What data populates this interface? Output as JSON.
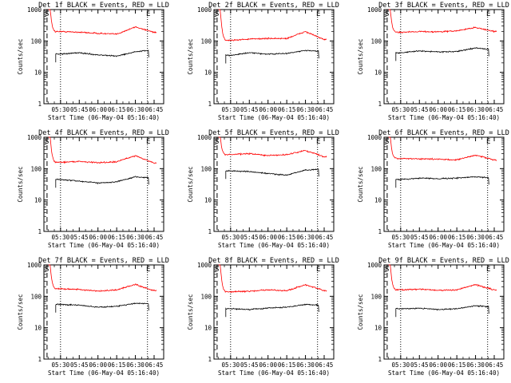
{
  "figure": {
    "start_time_label": "Start Time (06-May-04 05:16:40)",
    "ylabel": "Counts/sec",
    "x_tick_labels": [
      "05:30",
      "05:45",
      "06:00",
      "06:15",
      "06:30",
      "06:45"
    ],
    "y_tick_labels": [
      "1",
      "10",
      "100",
      "1000"
    ],
    "marker_start": "S",
    "marker_end": "E",
    "colors": {
      "events": "#000000",
      "lld": "#ff0000",
      "axes": "#000000"
    }
  },
  "chart_data": [
    {
      "type": "line",
      "title": "Det 1f BLACK = Events, RED = LLD",
      "ylim": [
        1,
        1000
      ],
      "y_scale": "log",
      "x": [
        "05:30",
        "05:45",
        "06:00",
        "06:15",
        "06:30",
        "06:45"
      ],
      "series": [
        {
          "name": "Events",
          "values": [
            38,
            42,
            36,
            33,
            45,
            52
          ]
        },
        {
          "name": "LLD",
          "values": [
            200,
            190,
            175,
            165,
            280,
            190
          ]
        }
      ]
    },
    {
      "type": "line",
      "title": "Det 2f BLACK = Events, RED = LLD",
      "ylim": [
        1,
        1000
      ],
      "y_scale": "log",
      "x": [
        "05:30",
        "05:45",
        "06:00",
        "06:15",
        "06:30",
        "06:45"
      ],
      "series": [
        {
          "name": "Events",
          "values": [
            35,
            42,
            38,
            40,
            50,
            45
          ]
        },
        {
          "name": "LLD",
          "values": [
            105,
            115,
            120,
            120,
            200,
            110
          ]
        }
      ]
    },
    {
      "type": "line",
      "title": "Det 3f BLACK = Events, RED = LLD",
      "ylim": [
        1,
        1000
      ],
      "y_scale": "log",
      "x": [
        "05:30",
        "05:45",
        "06:00",
        "06:15",
        "06:30",
        "06:45"
      ],
      "series": [
        {
          "name": "Events",
          "values": [
            42,
            48,
            45,
            46,
            60,
            52
          ]
        },
        {
          "name": "LLD",
          "values": [
            190,
            200,
            195,
            210,
            270,
            200
          ]
        }
      ]
    },
    {
      "type": "line",
      "title": "Det 4f BLACK = Events, RED = LLD",
      "ylim": [
        1,
        1000
      ],
      "y_scale": "log",
      "x": [
        "05:30",
        "05:45",
        "06:00",
        "06:15",
        "06:30",
        "06:45"
      ],
      "series": [
        {
          "name": "Events",
          "values": [
            45,
            40,
            35,
            38,
            55,
            50
          ]
        },
        {
          "name": "LLD",
          "values": [
            160,
            170,
            155,
            165,
            260,
            150
          ]
        }
      ]
    },
    {
      "type": "line",
      "title": "Det 5f BLACK = Events, RED = LLD",
      "ylim": [
        1,
        1000
      ],
      "y_scale": "log",
      "x": [
        "05:30",
        "05:45",
        "06:00",
        "06:15",
        "06:30",
        "06:45"
      ],
      "series": [
        {
          "name": "Events",
          "values": [
            85,
            80,
            70,
            62,
            90,
            95
          ]
        },
        {
          "name": "LLD",
          "values": [
            280,
            300,
            260,
            280,
            380,
            240
          ]
        }
      ]
    },
    {
      "type": "line",
      "title": "Det 6f BLACK = Events, RED = LLD",
      "ylim": [
        1,
        1000
      ],
      "y_scale": "log",
      "x": [
        "05:30",
        "05:45",
        "06:00",
        "06:15",
        "06:30",
        "06:45"
      ],
      "series": [
        {
          "name": "Events",
          "values": [
            45,
            50,
            48,
            50,
            55,
            50
          ]
        },
        {
          "name": "LLD",
          "values": [
            210,
            205,
            200,
            190,
            270,
            190
          ]
        }
      ]
    },
    {
      "type": "line",
      "title": "Det 7f BLACK = Events, RED = LLD",
      "ylim": [
        1,
        1000
      ],
      "y_scale": "log",
      "x": [
        "05:30",
        "05:45",
        "06:00",
        "06:15",
        "06:30",
        "06:45"
      ],
      "series": [
        {
          "name": "Events",
          "values": [
            55,
            52,
            45,
            48,
            60,
            58
          ]
        },
        {
          "name": "LLD",
          "values": [
            175,
            165,
            145,
            160,
            240,
            150
          ]
        }
      ]
    },
    {
      "type": "line",
      "title": "Det 8f BLACK = Events, RED = LLD",
      "ylim": [
        1,
        1000
      ],
      "y_scale": "log",
      "x": [
        "05:30",
        "05:45",
        "06:00",
        "06:15",
        "06:30",
        "06:45"
      ],
      "series": [
        {
          "name": "Events",
          "values": [
            40,
            38,
            42,
            45,
            55,
            52
          ]
        },
        {
          "name": "LLD",
          "values": [
            140,
            145,
            160,
            150,
            235,
            150
          ]
        }
      ]
    },
    {
      "type": "line",
      "title": "Det 9f BLACK = Events, RED = LLD",
      "ylim": [
        1,
        1000
      ],
      "y_scale": "log",
      "x": [
        "05:30",
        "05:45",
        "06:00",
        "06:15",
        "06:30",
        "06:45"
      ],
      "series": [
        {
          "name": "Events",
          "values": [
            40,
            42,
            38,
            40,
            50,
            45
          ]
        },
        {
          "name": "LLD",
          "values": [
            160,
            170,
            155,
            160,
            235,
            160
          ]
        }
      ]
    }
  ]
}
